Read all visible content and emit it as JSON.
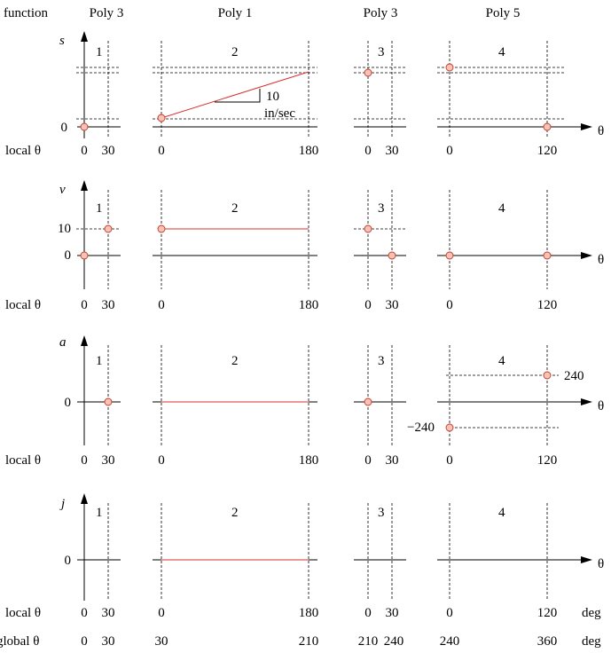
{
  "header": {
    "function_label": "function",
    "seg_titles": [
      "Poly 3",
      "Poly 1",
      "Poly 3",
      "Poly 5"
    ]
  },
  "segment_numbers": [
    "1",
    "2",
    "3",
    "4"
  ],
  "rows": {
    "s": {
      "symbol": "s",
      "zero": "0",
      "local": "local θ"
    },
    "v": {
      "symbol": "v",
      "ten": "10",
      "zero": "0",
      "local": "local θ"
    },
    "a": {
      "symbol": "a",
      "zero": "0",
      "local": "local θ",
      "pos": "240",
      "neg": "−240"
    },
    "j": {
      "symbol": "j",
      "zero": "0",
      "local": "local θ"
    }
  },
  "slope": {
    "value": "10",
    "unit": "in/sec"
  },
  "theta": "θ",
  "local_ticks": [
    "0",
    "30",
    "0",
    "180",
    "0",
    "30",
    "0",
    "120"
  ],
  "global": {
    "label": "global θ",
    "ticks": [
      "0",
      "30",
      "30",
      "210",
      "210",
      "240",
      "240",
      "360"
    ]
  },
  "deg": "deg",
  "colors": {
    "curve": "#d9302c",
    "point_fill": "#f7c3b5",
    "point_stroke": "#c0392b"
  }
}
